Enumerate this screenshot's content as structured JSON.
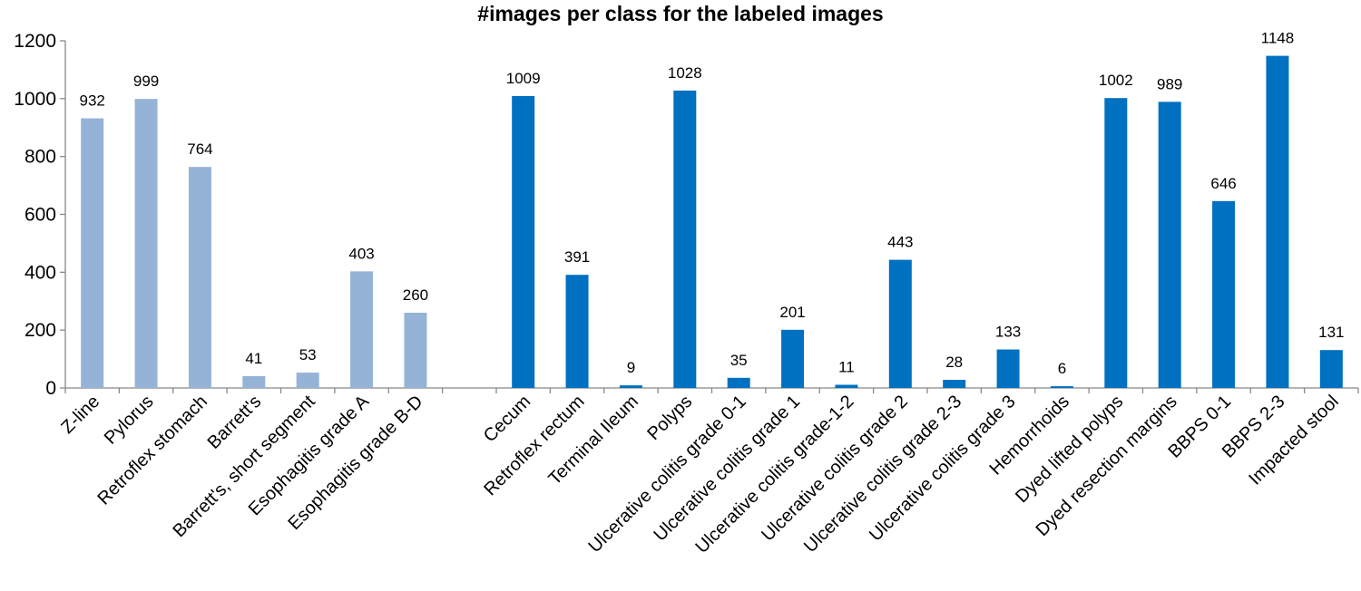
{
  "chart_data": {
    "type": "bar",
    "title": "#images per class for the labeled images",
    "xlabel": "",
    "ylabel": "",
    "ylim": [
      0,
      1200
    ],
    "yticks": [
      0,
      200,
      400,
      600,
      800,
      1000,
      1200
    ],
    "grid": false,
    "legend": "none",
    "colors": {
      "upper_gi": "#95b3d7",
      "lower_gi": "#0070c0"
    },
    "categories": [
      "Z-line",
      "Pylorus",
      "Retroflex stomach",
      "Barrett's",
      "Barrett's, short segment",
      "Esophagitis grade A",
      "Esophagitis grade B-D",
      "",
      "Cecum",
      "Retroflex rectum",
      "Terminal Ileum",
      "Polyps",
      "Ulcerative colitis grade 0-1",
      "Ulcerative colitis grade 1",
      "Ulcerative colitis grade-1-2",
      "Ulcerative colitis grade 2",
      "Ulcerative colitis grade 2-3",
      "Ulcerative colitis grade 3",
      "Hemorrhoids",
      "Dyed lifted polyps",
      "Dyed resection margins",
      "BBPS 0-1",
      "BBPS 2-3",
      "Impacted stool"
    ],
    "values": [
      932,
      999,
      764,
      41,
      53,
      403,
      260,
      null,
      1009,
      391,
      9,
      1028,
      35,
      201,
      11,
      443,
      28,
      133,
      6,
      1002,
      989,
      646,
      1148,
      131
    ],
    "groups": [
      "upper_gi",
      "upper_gi",
      "upper_gi",
      "upper_gi",
      "upper_gi",
      "upper_gi",
      "upper_gi",
      "",
      "lower_gi",
      "lower_gi",
      "lower_gi",
      "lower_gi",
      "lower_gi",
      "lower_gi",
      "lower_gi",
      "lower_gi",
      "lower_gi",
      "lower_gi",
      "lower_gi",
      "lower_gi",
      "lower_gi",
      "lower_gi",
      "lower_gi",
      "lower_gi"
    ]
  }
}
